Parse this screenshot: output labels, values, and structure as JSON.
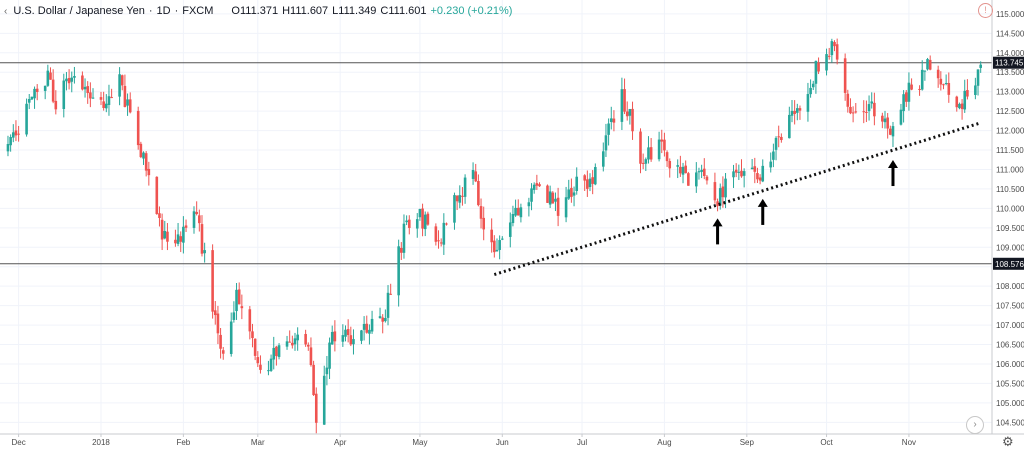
{
  "header": {
    "collapse_icon": "chevron-left-icon",
    "symbol": "U.S. Dollar / Japanese Yen",
    "interval": "1D",
    "source": "FXCM",
    "open": "O111.371",
    "high": "H111.607",
    "low": "L111.349",
    "close": "C111.601",
    "change": "+0.230 (+0.21%)"
  },
  "icons": {
    "alert": "alert-icon",
    "settings": "gear-icon",
    "scroll": "scroll-right-icon"
  },
  "colors": {
    "up": "#26a69a",
    "down": "#ef5350",
    "hline": "#555555",
    "trend": "#111111",
    "arrow": "#000000"
  },
  "chart_data": {
    "type": "candlestick",
    "title": "",
    "xlabel": "",
    "ylabel": "",
    "ylim": [
      104.2,
      115.1
    ],
    "y_ticks": [
      "104.500",
      "105.000",
      "105.500",
      "106.000",
      "106.500",
      "107.000",
      "107.500",
      "108.000",
      "108.500",
      "109.000",
      "109.500",
      "110.000",
      "110.500",
      "111.000",
      "111.500",
      "112.000",
      "112.500",
      "113.000",
      "113.500",
      "114.000",
      "114.500",
      "115.000"
    ],
    "x_ticks": [
      "Dec",
      "2018",
      "Feb",
      "Mar",
      "Apr",
      "May",
      "Jun",
      "Jul",
      "Aug",
      "Sep",
      "Oct",
      "Nov"
    ],
    "price_levels": [
      {
        "label": "113.745",
        "value": 113.745
      },
      {
        "label": "108.576",
        "value": 108.576
      }
    ],
    "trendline": {
      "x_start": "2018-05-29",
      "y_start": 108.3,
      "x_end": "2018-11-28",
      "y_end": 112.2,
      "style": "dotted"
    },
    "support_arrows": [
      {
        "date": "2018-08-21",
        "value": 110.0
      },
      {
        "date": "2018-09-07",
        "value": 110.5
      },
      {
        "date": "2018-10-26",
        "value": 111.5
      }
    ],
    "close_path": [
      {
        "date": "2017-11-27",
        "value": 111.5
      },
      {
        "date": "2017-12-04",
        "value": 112.5
      },
      {
        "date": "2017-12-12",
        "value": 113.4
      },
      {
        "date": "2017-12-15",
        "value": 112.6
      },
      {
        "date": "2017-12-21",
        "value": 113.5
      },
      {
        "date": "2017-12-28",
        "value": 112.9
      },
      {
        "date": "2018-01-03",
        "value": 112.5
      },
      {
        "date": "2018-01-08",
        "value": 113.3
      },
      {
        "date": "2018-01-17",
        "value": 111.3
      },
      {
        "date": "2018-01-24",
        "value": 109.3
      },
      {
        "date": "2018-01-29",
        "value": 109.0
      },
      {
        "date": "2018-02-05",
        "value": 110.1
      },
      {
        "date": "2018-02-09",
        "value": 108.7
      },
      {
        "date": "2018-02-16",
        "value": 106.1
      },
      {
        "date": "2018-02-21",
        "value": 107.8
      },
      {
        "date": "2018-02-27",
        "value": 106.6
      },
      {
        "date": "2018-03-02",
        "value": 105.8
      },
      {
        "date": "2018-03-07",
        "value": 106.2
      },
      {
        "date": "2018-03-13",
        "value": 106.7
      },
      {
        "date": "2018-03-20",
        "value": 106.3
      },
      {
        "date": "2018-03-23",
        "value": 104.7
      },
      {
        "date": "2018-03-29",
        "value": 106.8
      },
      {
        "date": "2018-04-05",
        "value": 106.6
      },
      {
        "date": "2018-04-11",
        "value": 106.9
      },
      {
        "date": "2018-04-18",
        "value": 107.3
      },
      {
        "date": "2018-04-25",
        "value": 109.4
      },
      {
        "date": "2018-05-01",
        "value": 109.8
      },
      {
        "date": "2018-05-09",
        "value": 109.2
      },
      {
        "date": "2018-05-15",
        "value": 110.3
      },
      {
        "date": "2018-05-21",
        "value": 111.0
      },
      {
        "date": "2018-05-25",
        "value": 109.4
      },
      {
        "date": "2018-05-29",
        "value": 108.8
      },
      {
        "date": "2018-06-04",
        "value": 109.6
      },
      {
        "date": "2018-06-11",
        "value": 110.3
      },
      {
        "date": "2018-06-15",
        "value": 110.7
      },
      {
        "date": "2018-06-22",
        "value": 109.9
      },
      {
        "date": "2018-06-28",
        "value": 110.6
      },
      {
        "date": "2018-07-05",
        "value": 110.6
      },
      {
        "date": "2018-07-11",
        "value": 112.1
      },
      {
        "date": "2018-07-16",
        "value": 112.9
      },
      {
        "date": "2018-07-19",
        "value": 112.4
      },
      {
        "date": "2018-07-24",
        "value": 111.1
      },
      {
        "date": "2018-07-31",
        "value": 111.9
      },
      {
        "date": "2018-08-03",
        "value": 111.2
      },
      {
        "date": "2018-08-10",
        "value": 110.8
      },
      {
        "date": "2018-08-14",
        "value": 111.1
      },
      {
        "date": "2018-08-21",
        "value": 110.2
      },
      {
        "date": "2018-08-27",
        "value": 111.2
      },
      {
        "date": "2018-08-31",
        "value": 111.0
      },
      {
        "date": "2018-09-07",
        "value": 110.9
      },
      {
        "date": "2018-09-14",
        "value": 112.0
      },
      {
        "date": "2018-09-21",
        "value": 112.6
      },
      {
        "date": "2018-09-28",
        "value": 113.7
      },
      {
        "date": "2018-10-04",
        "value": 114.2
      },
      {
        "date": "2018-10-10",
        "value": 112.3
      },
      {
        "date": "2018-10-17",
        "value": 112.6
      },
      {
        "date": "2018-10-24",
        "value": 112.2
      },
      {
        "date": "2018-10-26",
        "value": 111.9
      },
      {
        "date": "2018-10-31",
        "value": 112.9
      },
      {
        "date": "2018-11-06",
        "value": 113.4
      },
      {
        "date": "2018-11-09",
        "value": 113.8
      },
      {
        "date": "2018-11-14",
        "value": 113.2
      },
      {
        "date": "2018-11-20",
        "value": 112.6
      },
      {
        "date": "2018-11-23",
        "value": 112.9
      },
      {
        "date": "2018-11-28",
        "value": 113.7
      }
    ]
  }
}
